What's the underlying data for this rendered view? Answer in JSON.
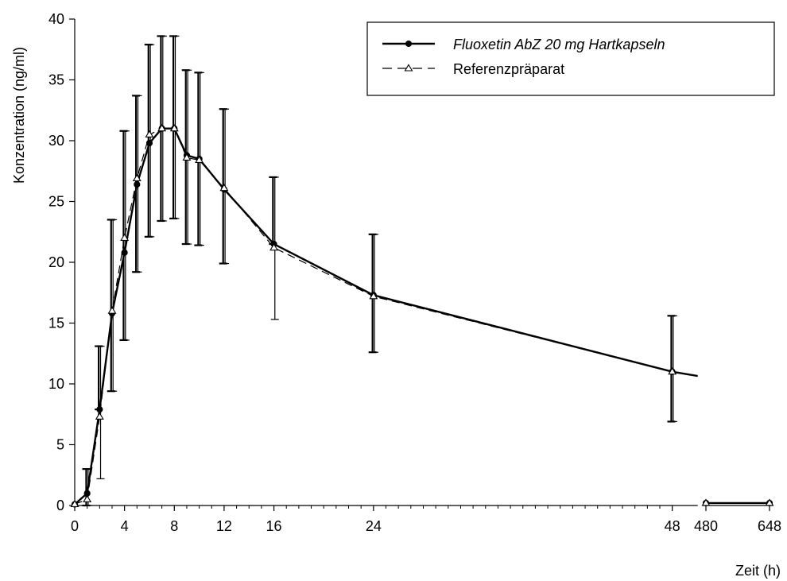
{
  "chart_data": {
    "type": "line",
    "ylabel": "Konzentration (ng/ml)",
    "xlabel": "Zeit (h)",
    "ylim": [
      0,
      40
    ],
    "yticks": [
      0,
      5,
      10,
      15,
      20,
      25,
      30,
      35,
      40
    ],
    "xticks_main": [
      0,
      4,
      8,
      12,
      16,
      24,
      48
    ],
    "xticks_break": [
      480,
      648
    ],
    "legend_position": "top-right",
    "series": [
      {
        "name": "Fluoxetin AbZ 20 mg Hartkapseln",
        "style": "solid line, filled circle markers",
        "color": "#000000",
        "x": [
          0,
          1,
          2,
          3,
          4,
          5,
          6,
          7,
          8,
          9,
          10,
          12,
          16,
          24,
          48,
          480,
          648
        ],
        "y": [
          0.1,
          1.0,
          7.9,
          15.8,
          20.8,
          26.4,
          29.8,
          31.0,
          31.0,
          28.8,
          28.5,
          26.0,
          21.5,
          17.3,
          11.0,
          0.2,
          0.2
        ],
        "error_lower": [
          0.2,
          0.0,
          7.9,
          9.4,
          13.6,
          19.2,
          22.1,
          23.4,
          23.6,
          21.5,
          21.4,
          19.9,
          21.5,
          12.6,
          6.9,
          0.2,
          0.2
        ],
        "error_upper": [
          0.2,
          3.0,
          13.1,
          23.5,
          30.8,
          33.7,
          37.9,
          38.6,
          38.6,
          35.8,
          35.6,
          32.6,
          27.0,
          22.3,
          15.6,
          0.2,
          0.2
        ]
      },
      {
        "name": "Referenzpräparat",
        "style": "dashed line, open triangle markers",
        "color": "#000000",
        "x": [
          0,
          1,
          2,
          3,
          4,
          5,
          6,
          7,
          8,
          9,
          10,
          12,
          16,
          24,
          48,
          480,
          648
        ],
        "y": [
          0.1,
          0.5,
          7.3,
          16.0,
          22.0,
          26.9,
          30.5,
          31.0,
          31.0,
          28.6,
          28.4,
          26.1,
          21.2,
          17.2,
          11.0,
          0.2,
          0.2
        ],
        "error_lower": [
          0.2,
          0.0,
          2.2,
          9.4,
          13.6,
          19.2,
          22.1,
          23.4,
          23.6,
          21.5,
          21.4,
          19.9,
          15.3,
          12.6,
          6.9,
          0.2,
          0.2
        ],
        "error_upper": [
          0.2,
          3.0,
          13.1,
          23.5,
          30.8,
          33.7,
          37.9,
          38.6,
          38.6,
          35.8,
          35.6,
          32.6,
          27.0,
          22.3,
          15.6,
          0.2,
          0.2
        ]
      }
    ]
  }
}
